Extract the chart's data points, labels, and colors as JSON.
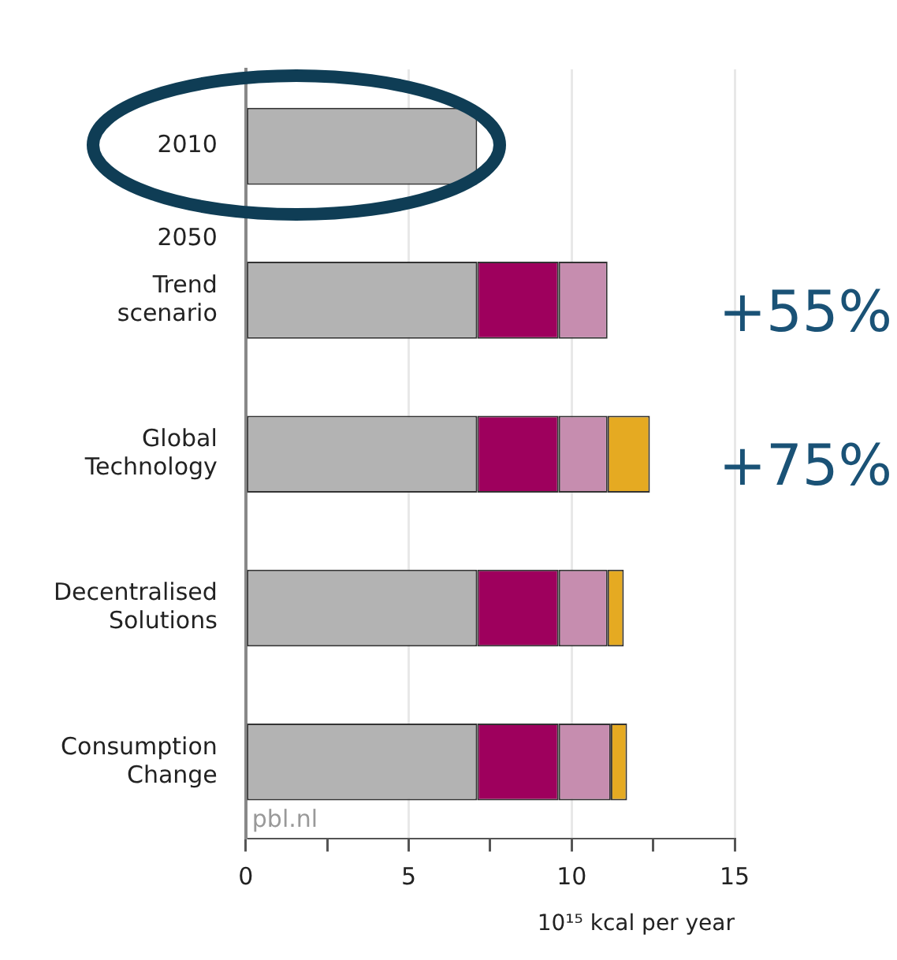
{
  "chart_data": {
    "type": "bar",
    "orientation": "horizontal",
    "stacked": true,
    "categories": [
      "2010",
      "Trend scenario",
      "Global Technology",
      "Decentralised Solutions",
      "Consumption Change"
    ],
    "series": [
      {
        "color": "#b3b3b3",
        "values": [
          7.1,
          7.1,
          7.1,
          7.1,
          7.1
        ]
      },
      {
        "color": "#9e005d",
        "values": [
          null,
          2.5,
          2.5,
          2.5,
          2.5
        ]
      },
      {
        "color": "#c68daf",
        "values": [
          null,
          1.5,
          1.5,
          1.5,
          1.6
        ]
      },
      {
        "color": "#e5aa22",
        "values": [
          null,
          null,
          1.3,
          0.5,
          0.5
        ]
      }
    ],
    "xlabel": "10¹⁵ kcal per year",
    "xlim": [
      0,
      15
    ],
    "xticks": [
      0,
      {
        "value": 2.5,
        "label": null
      },
      5,
      {
        "value": 7.5,
        "label": null
      },
      10,
      {
        "value": 12.5,
        "label": null
      },
      15
    ],
    "grid": "x",
    "legend": false,
    "annotations": [
      "2050",
      "pbl.nl",
      "+55%",
      "+75%"
    ]
  }
}
